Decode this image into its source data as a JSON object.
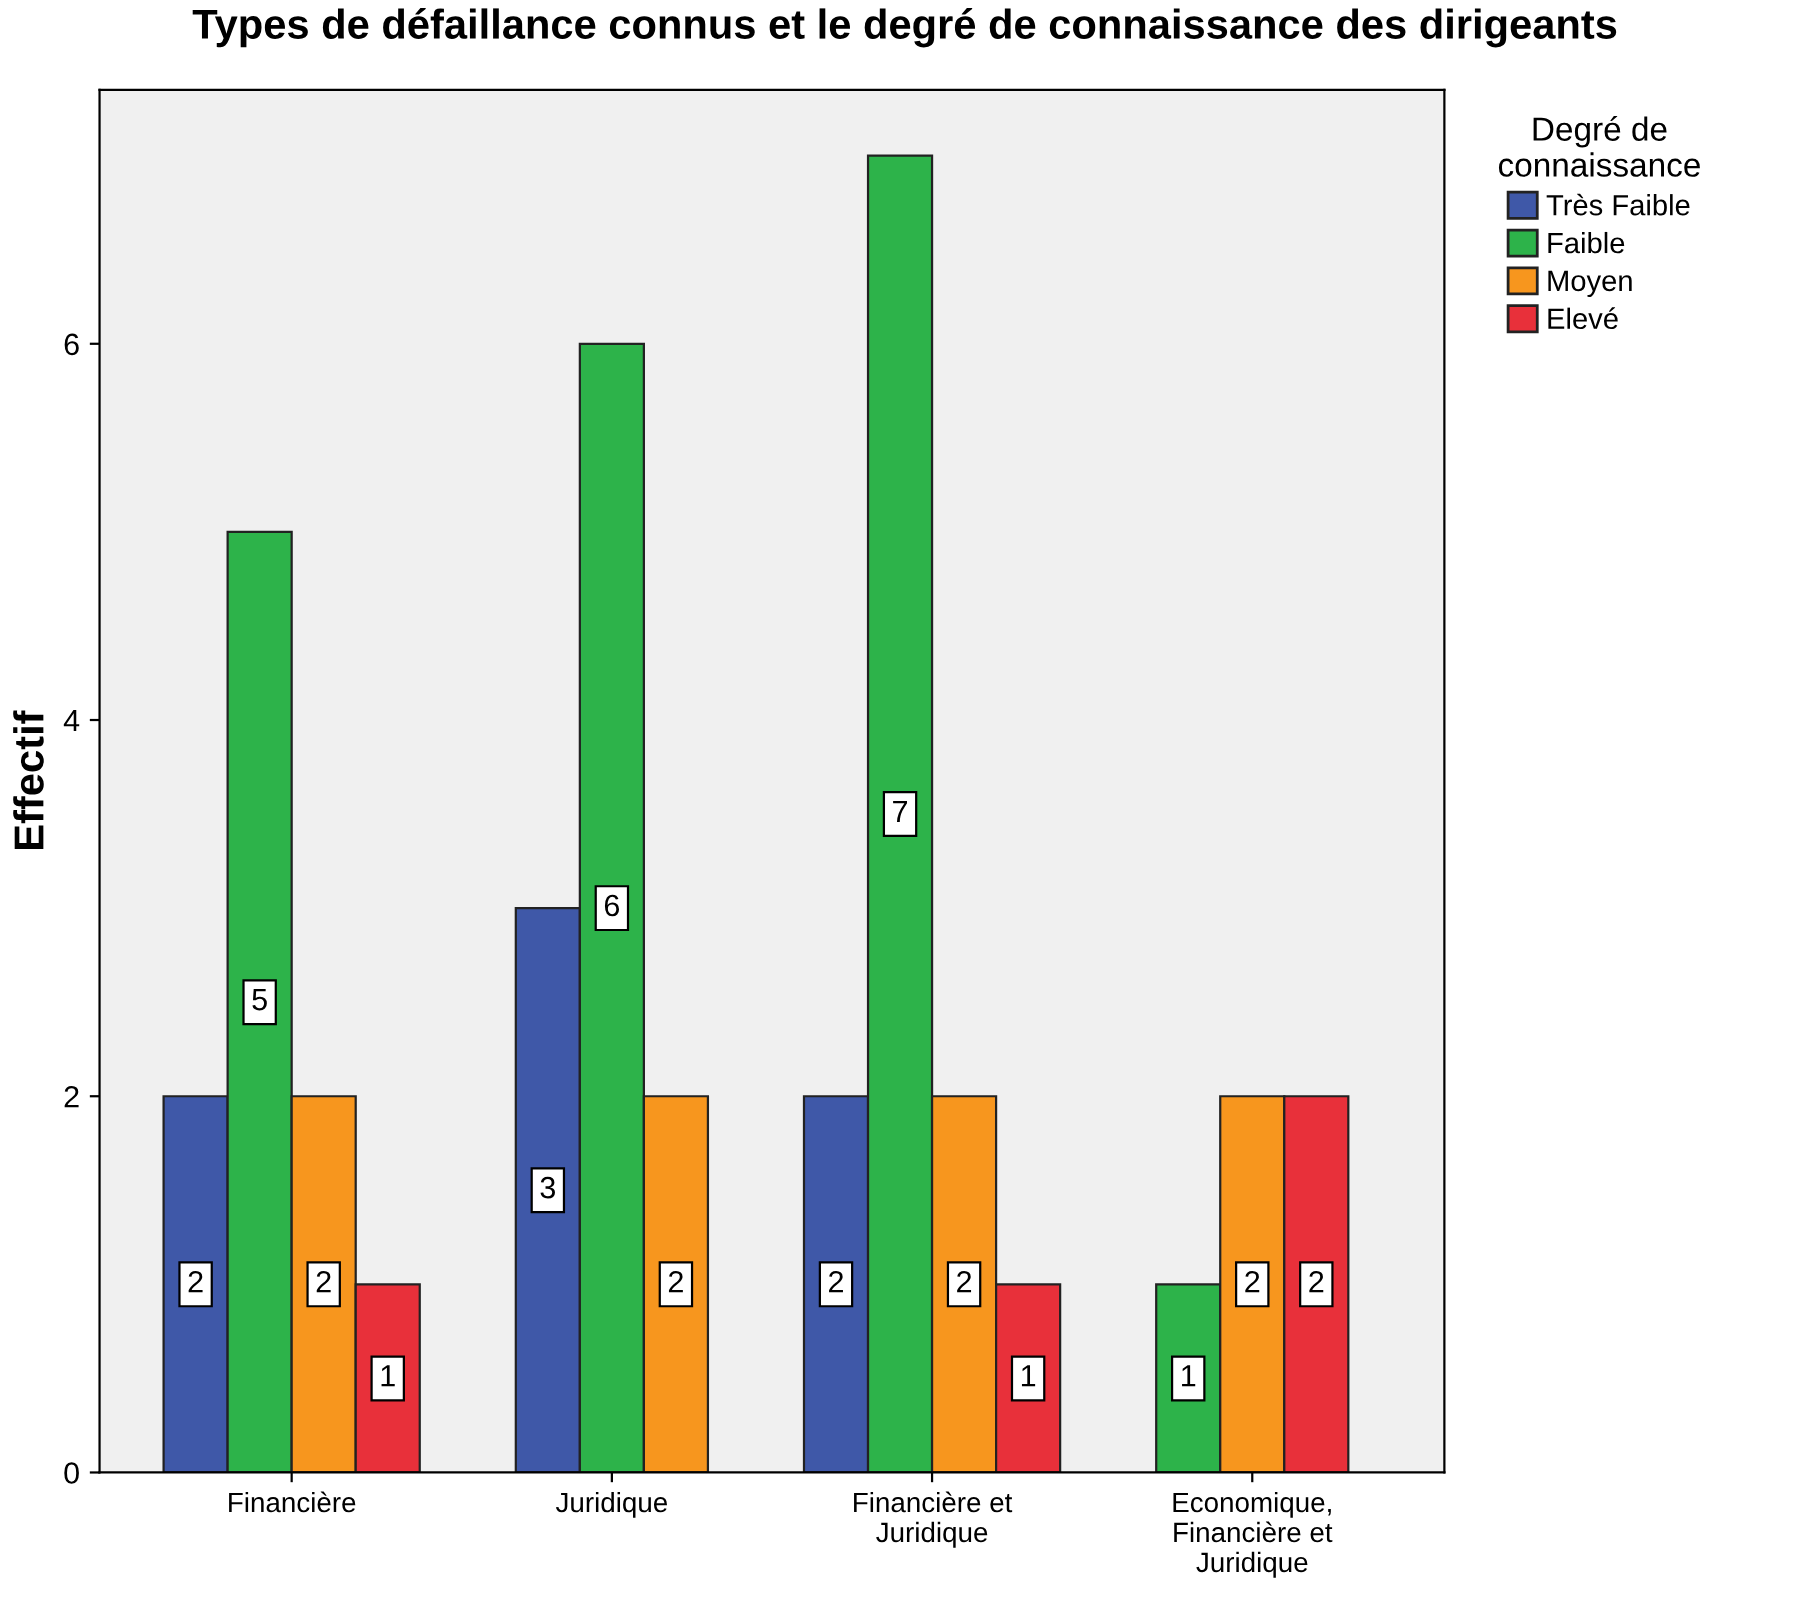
{
  "chart_data": {
    "type": "bar",
    "title": "Types de défaillance connus et le degré de connaissance des dirigeants",
    "ylabel": "Effectif",
    "legend_title": "Degré de\nconnaissance",
    "legend": "top right",
    "categories": [
      "Financière",
      "Juridique",
      "Financière et\nJuridique",
      "Economique,\nFinancière et\nJuridique"
    ],
    "series": [
      {
        "name": "Très Faible",
        "color": "#3f58a8",
        "values": [
          2,
          3,
          2,
          null
        ]
      },
      {
        "name": "Faible",
        "color": "#2db34a",
        "values": [
          5,
          6,
          7,
          1
        ]
      },
      {
        "name": "Moyen",
        "color": "#f7961e",
        "values": [
          2,
          2,
          2,
          2
        ]
      },
      {
        "name": "Elevé",
        "color": "#e8303a",
        "values": [
          1,
          null,
          1,
          2
        ]
      }
    ],
    "ylim": [
      0,
      7.35
    ],
    "yticks": [
      0,
      2,
      4,
      6
    ],
    "grid": false,
    "data_labels": true
  }
}
